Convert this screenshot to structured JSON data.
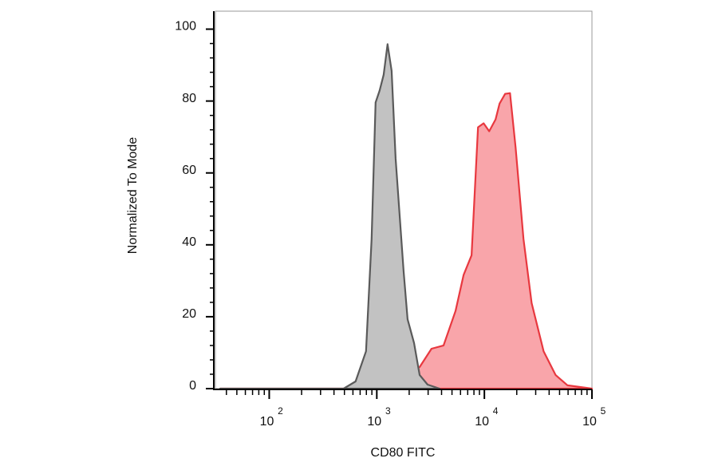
{
  "chart_data": {
    "type": "area",
    "x_label": "CD80 FITC",
    "y_label": "Normalized To Mode",
    "xscale": "log",
    "xlim": [
      31.6,
      100000
    ],
    "ylim": [
      0,
      105
    ],
    "xticks": [
      {
        "value": 100,
        "label": "10",
        "power": "2"
      },
      {
        "value": 1000,
        "label": "10",
        "power": "3"
      },
      {
        "value": 10000,
        "label": "10",
        "power": "4"
      },
      {
        "value": 100000,
        "label": "10",
        "power": "5"
      }
    ],
    "xminorticks": [
      40,
      50,
      60,
      70,
      80,
      90,
      200,
      300,
      400,
      500,
      600,
      700,
      800,
      900,
      2000,
      3000,
      4000,
      5000,
      6000,
      7000,
      8000,
      9000,
      20000,
      30000,
      40000,
      50000,
      60000,
      70000,
      80000,
      90000
    ],
    "yticks": [
      0,
      20,
      40,
      60,
      80,
      100
    ],
    "yminorticks": [
      4,
      8,
      12,
      16,
      24,
      28,
      32,
      36,
      44,
      48,
      52,
      56,
      64,
      68,
      72,
      76,
      84,
      88,
      92,
      96
    ],
    "series": [
      {
        "color": "#e8383f",
        "fill": "#f9a5aa",
        "x": [
          35,
          975,
          1157,
          1629,
          2000,
          2500,
          3228,
          4178,
          5395,
          6412,
          7603,
          8730,
          9840,
          11090,
          12710,
          13840,
          15600,
          17300,
          19500,
          23100,
          27500,
          35500,
          45900,
          59300,
          100000
        ],
        "values": [
          0,
          0,
          2.7,
          3.8,
          4.9,
          6,
          11.1,
          12,
          21.6,
          31.6,
          37.1,
          72.7,
          73.8,
          71.6,
          74.9,
          79.3,
          82,
          82.2,
          67.1,
          41.6,
          23.8,
          10.4,
          3.8,
          0.9,
          0
        ]
      },
      {
        "color": "#5a5a5a",
        "fill": "#c2c2c2",
        "x": [
          35,
          491,
          635,
          794,
          895,
          975,
          1062,
          1157,
          1259,
          1373,
          1496,
          1775,
          1932,
          2218,
          2500,
          2965,
          3836
        ],
        "values": [
          0,
          0,
          2,
          10.4,
          41.6,
          79.6,
          82.9,
          87.3,
          95.8,
          88.4,
          64,
          32.7,
          19.3,
          12.7,
          3.8,
          1.1,
          0
        ]
      }
    ]
  }
}
